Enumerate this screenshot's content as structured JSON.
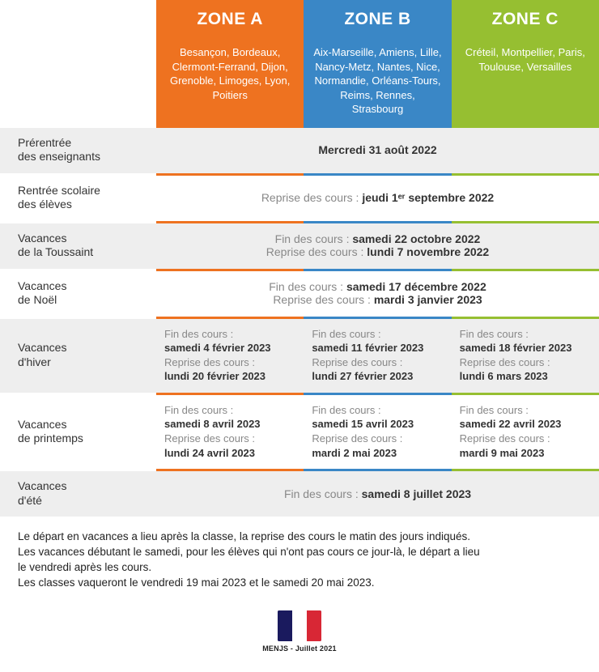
{
  "colors": {
    "zoneA": "#ee7220",
    "zoneB": "#3a87c6",
    "zoneC": "#96bf31",
    "altRow": "#eeeeee",
    "grayText": "#888888"
  },
  "zones": {
    "a": {
      "title": "ZONE A",
      "cities": "Besançon, Bordeaux, Clermont-Ferrand, Dijon, Grenoble, Limoges, Lyon, Poitiers"
    },
    "b": {
      "title": "ZONE B",
      "cities": "Aix-Marseille, Amiens, Lille, Nancy-Metz, Nantes, Nice, Normandie, Orléans-Tours, Reims, Rennes, Strasbourg"
    },
    "c": {
      "title": "ZONE C",
      "cities": "Créteil, Montpellier, Paris, Toulouse, Versailles"
    }
  },
  "labels": {
    "fin": "Fin des cours :",
    "reprise": "Reprise des cours :"
  },
  "rows": {
    "prerentree": {
      "label": "Prérentrée\ndes enseignants",
      "value": "Mercredi 31 août 2022"
    },
    "rentree": {
      "label": "Rentrée scolaire\ndes élèves",
      "prefix": "Reprise des cours : ",
      "value": "jeudi 1ᵉʳ septembre 2022"
    },
    "toussaint": {
      "label": "Vacances\nde la Toussaint",
      "fin": "samedi 22 octobre 2022",
      "reprise": "lundi 7 novembre 2022"
    },
    "noel": {
      "label": "Vacances\nde Noël",
      "fin": "samedi 17 décembre 2022",
      "reprise": "mardi 3 janvier 2023"
    },
    "hiver": {
      "label": "Vacances\nd'hiver",
      "a": {
        "fin": "samedi 4 février 2023",
        "reprise": "lundi 20 février 2023"
      },
      "b": {
        "fin": "samedi 11 février 2023",
        "reprise": "lundi 27 février 2023"
      },
      "c": {
        "fin": "samedi 18 février 2023",
        "reprise": "lundi 6 mars 2023"
      }
    },
    "printemps": {
      "label": "Vacances\nde printemps",
      "a": {
        "fin": "samedi 8 avril 2023",
        "reprise": "lundi 24 avril 2023"
      },
      "b": {
        "fin": "samedi 15 avril 2023",
        "reprise": "mardi 2 mai 2023"
      },
      "c": {
        "fin": "samedi 22 avril 2023",
        "reprise": "mardi 9 mai 2023"
      }
    },
    "ete": {
      "label": "Vacances\nd'été",
      "prefix": "Fin des cours : ",
      "value": "samedi 8 juillet 2023"
    }
  },
  "footnotes": {
    "l1": "Le départ en vacances a lieu après la classe, la reprise des cours le matin des jours indiqués.",
    "l2": "Les vacances débutant le samedi, pour les élèves qui n'ont pas cours ce jour-là, le départ a lieu",
    "l3": "le vendredi après les cours.",
    "l4": "Les classes vaqueront le vendredi 19 mai 2023 et le samedi 20 mai 2023."
  },
  "footer": {
    "caption": "MENJS - Juillet 2021"
  }
}
